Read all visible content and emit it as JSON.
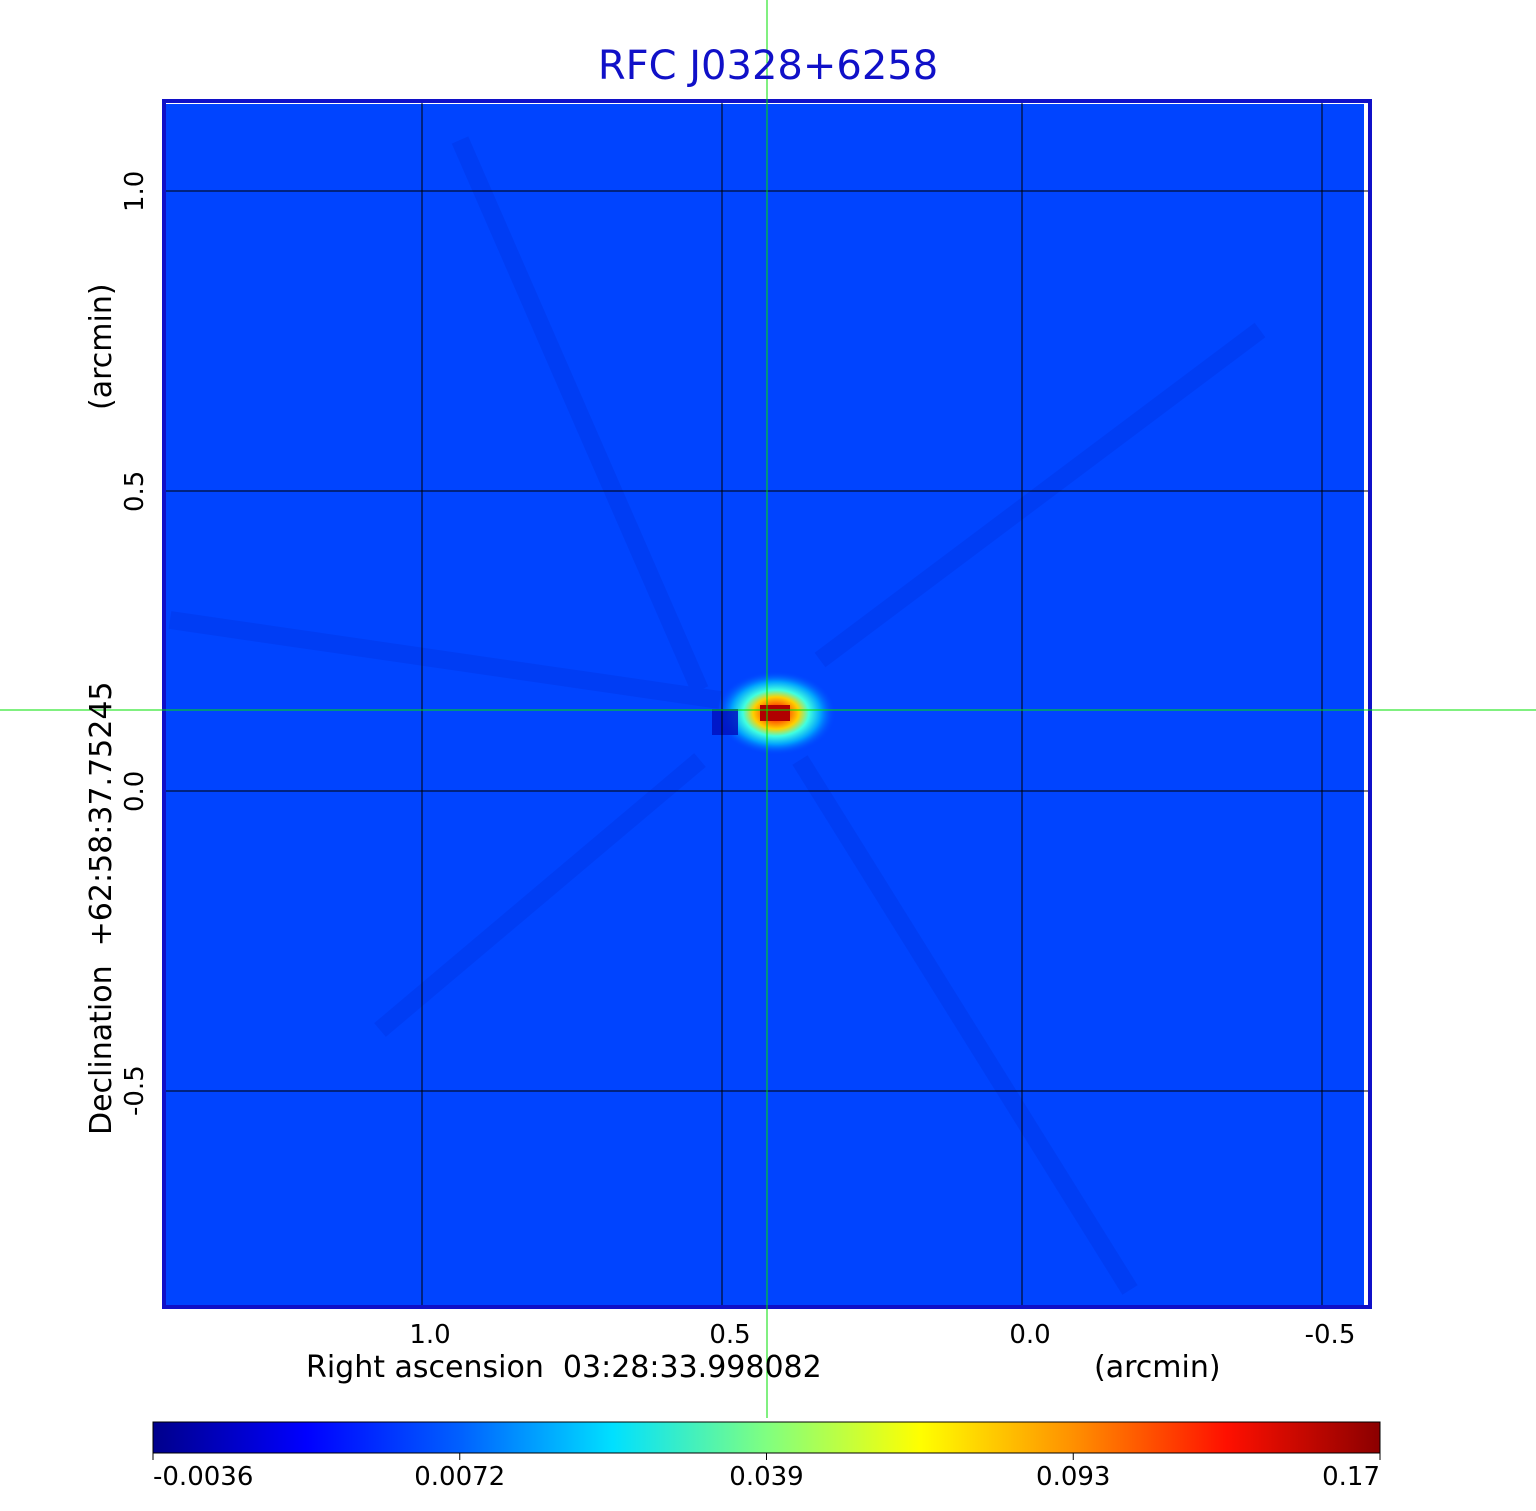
{
  "chart_data": {
    "type": "heatmap",
    "title": "RFC J0328+6258",
    "xlabel": "Right ascension  03:28:33.998082",
    "xunit": "(arcmin)",
    "ylabel": "Declination  +62:58:37.75245",
    "yunit": "(arcmin)",
    "x_ticks": [
      "1.0",
      "0.5",
      "0.0",
      "-0.5"
    ],
    "y_ticks": [
      "1.0",
      "0.5",
      "0.0",
      "-0.5"
    ],
    "x_tick_values": [
      1.0,
      0.5,
      0.0,
      -0.5
    ],
    "y_tick_values": [
      1.0,
      0.5,
      0.0,
      -0.5
    ],
    "xlim": [
      1.43,
      -0.58
    ],
    "ylim": [
      -0.86,
      1.15
    ],
    "grid": true,
    "crosshair": {
      "x": 0.425,
      "y": 0.135,
      "color": "#00e000"
    },
    "peak": {
      "x": 0.41,
      "y": 0.13
    },
    "colorbar": {
      "tick_labels": [
        "-0.0036",
        "0.0072",
        "0.039",
        "0.093",
        "0.17"
      ],
      "colormap": "jet",
      "colors": [
        "#00008b",
        "#0000ff",
        "#0080ff",
        "#00ffff",
        "#80ff80",
        "#ffff00",
        "#ff8000",
        "#ff0000",
        "#8b0000"
      ]
    },
    "background_color": "#0044ff",
    "frame_color": "#1010c8"
  }
}
